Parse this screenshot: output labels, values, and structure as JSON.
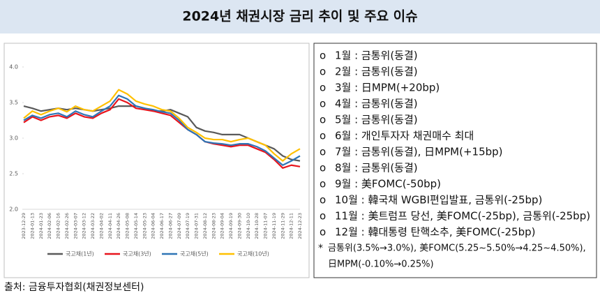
{
  "header": {
    "title": "2024년 채권시장 금리 추이 및 주요 이슈"
  },
  "chart_data": {
    "type": "line",
    "categories": [
      "2023-12-29",
      "2024-01-13",
      "2024-01-23",
      "2024-02-06",
      "2024-02-16",
      "2024-02-26",
      "2024-03-07",
      "2024-03-12",
      "2024-03-22",
      "2024-04-02",
      "2024-04-11",
      "2024-04-26",
      "2024-05-08",
      "2024-05-14",
      "2024-05-23",
      "2024-06-04",
      "2024-06-17",
      "2024-06-27",
      "2024-07-09",
      "2024-07-19",
      "2024-07-31",
      "2024-08-12",
      "2024-08-23",
      "2024-09-04",
      "2024-09-19",
      "2024-09-30",
      "2024-10-10",
      "2024-10-28",
      "2024-11-07",
      "2024-11-19",
      "2024-11-29",
      "2024-12-11",
      "2024-12-23"
    ],
    "series": [
      {
        "name": "국고채(1년)",
        "color": "#595959",
        "values": [
          3.45,
          3.42,
          3.38,
          3.4,
          3.42,
          3.4,
          3.42,
          3.4,
          3.38,
          3.4,
          3.42,
          3.45,
          3.45,
          3.45,
          3.42,
          3.38,
          3.38,
          3.4,
          3.35,
          3.3,
          3.15,
          3.1,
          3.08,
          3.05,
          3.05,
          3.05,
          3.0,
          2.95,
          2.9,
          2.85,
          2.75,
          2.7,
          2.68
        ]
      },
      {
        "name": "국고채(3년)",
        "color": "#e8141c",
        "values": [
          3.22,
          3.3,
          3.25,
          3.3,
          3.32,
          3.28,
          3.35,
          3.3,
          3.28,
          3.35,
          3.4,
          3.55,
          3.5,
          3.42,
          3.4,
          3.38,
          3.35,
          3.32,
          3.22,
          3.12,
          3.05,
          2.95,
          2.92,
          2.9,
          2.88,
          2.9,
          2.9,
          2.85,
          2.8,
          2.7,
          2.58,
          2.62,
          2.6
        ]
      },
      {
        "name": "국고채(5년)",
        "color": "#2e75b6",
        "values": [
          3.25,
          3.32,
          3.28,
          3.33,
          3.35,
          3.3,
          3.38,
          3.33,
          3.3,
          3.38,
          3.45,
          3.6,
          3.55,
          3.45,
          3.42,
          3.4,
          3.37,
          3.35,
          3.25,
          3.12,
          3.05,
          2.95,
          2.93,
          2.92,
          2.9,
          2.92,
          2.92,
          2.88,
          2.82,
          2.72,
          2.62,
          2.68,
          2.75
        ]
      },
      {
        "name": "국고채(10년)",
        "color": "#ffc000",
        "values": [
          3.28,
          3.38,
          3.33,
          3.38,
          3.42,
          3.37,
          3.45,
          3.4,
          3.38,
          3.45,
          3.52,
          3.68,
          3.62,
          3.52,
          3.48,
          3.45,
          3.4,
          3.38,
          3.28,
          3.15,
          3.08,
          3.0,
          2.98,
          2.98,
          2.95,
          2.98,
          3.0,
          2.95,
          2.9,
          2.78,
          2.68,
          2.78,
          2.85
        ]
      }
    ],
    "ylim": [
      2.0,
      4.0
    ],
    "yticks": [
      {
        "value": 2,
        "label": "2.0"
      },
      {
        "value": 2.5,
        "label": "2.5"
      },
      {
        "value": 3,
        "label": "3.0"
      },
      {
        "value": 3.5,
        "label": "3.5"
      },
      {
        "value": 4,
        "label": "4.0"
      }
    ],
    "legend": "bottom"
  },
  "notes": {
    "items": [
      {
        "marker": "o",
        "text": "1월 : 금통위(동결)"
      },
      {
        "marker": "o",
        "text": "2월 : 금통위(동결)"
      },
      {
        "marker": "o",
        "text": "3월 : 日MPM(+20bp)"
      },
      {
        "marker": "o",
        "text": "4월 : 금통위(동결)"
      },
      {
        "marker": "o",
        "text": "5월 : 금통위(동결)"
      },
      {
        "marker": "o",
        "text": "6월 : 개인투자자 채권매수 최대"
      },
      {
        "marker": "o",
        "text": "7월 : 금통위(동결), 日MPM(+15bp)"
      },
      {
        "marker": "o",
        "text": "8월 : 금통위(동결)"
      },
      {
        "marker": "o",
        "text": "9월 : 美FOMC(-50bp)"
      },
      {
        "marker": "o",
        "text": "10월 : 韓국채 WGBI편입발표, 금통위(-25bp)"
      },
      {
        "marker": "o",
        "text": "11월 : 美트럼프 당선, 美FOMC(-25bp), 금통위(-25bp)"
      },
      {
        "marker": "o",
        "text": "12월 : 韓대통령 탄핵소추, 美FOMC(-25bp)"
      }
    ],
    "footnote": {
      "marker": "*",
      "lines": [
        "금통위(3.5%→3.0%), 美FOMC(5.25~5.50%→4.25~4.50%),",
        "日MPM(-0.10%→0.25%)"
      ]
    }
  },
  "source": "출처: 금융투자협회(채권정보센터)"
}
